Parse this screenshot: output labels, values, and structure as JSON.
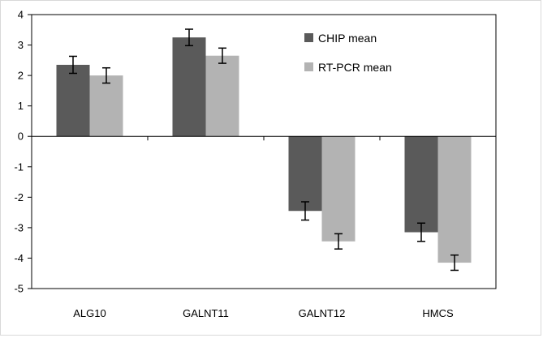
{
  "chart_data": {
    "type": "bar",
    "title": "",
    "xlabel": "",
    "ylabel": "",
    "ylim": [
      -5,
      4
    ],
    "yticks": [
      4,
      3,
      2,
      1,
      0,
      -1,
      -2,
      -3,
      -4,
      -5
    ],
    "grid": false,
    "legend_placement": "top-right",
    "categories": [
      "ALG10",
      "GALNT11",
      "GALNT12",
      "HMCS"
    ],
    "series": [
      {
        "name": "CHIP mean",
        "color": "#5a5a5a",
        "values": [
          2.35,
          3.25,
          -2.45,
          -3.15
        ],
        "errors": [
          0.28,
          0.27,
          0.3,
          0.3
        ]
      },
      {
        "name": "RT-PCR mean",
        "color": "#b3b3b3",
        "values": [
          2.0,
          2.65,
          -3.45,
          -4.15
        ],
        "errors": [
          0.25,
          0.25,
          0.25,
          0.25
        ]
      }
    ]
  }
}
